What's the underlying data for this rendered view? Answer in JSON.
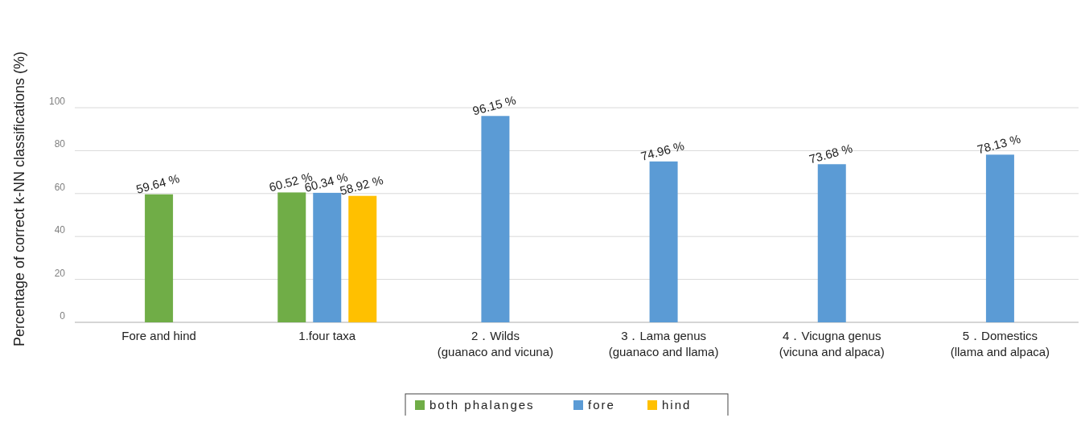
{
  "chart_data": {
    "type": "bar",
    "ylabel": "Percentage of correct k-NN classifications  (%)",
    "categories": [
      "Fore and hind",
      "1.four taxa",
      "2．Wilds\n(guanaco and vicuna)",
      "3．Lama genus\n(guanaco and llama)",
      "4．Vicugna genus\n(vicuna and alpaca)",
      "5．Domestics\n(llama and alpaca)"
    ],
    "series": [
      {
        "name": "both phalanges",
        "color": "#70ad47",
        "values": [
          59.64,
          60.52,
          null,
          null,
          null,
          null
        ],
        "value_labels": [
          "59.64 %",
          "60.52 %",
          null,
          null,
          null,
          null
        ]
      },
      {
        "name": "fore",
        "color": "#5b9bd5",
        "values": [
          null,
          60.34,
          96.15,
          74.96,
          73.68,
          78.13
        ],
        "value_labels": [
          null,
          "60.34 %",
          "96.15 %",
          "74.96 %",
          "73.68 %",
          "78.13 %"
        ]
      },
      {
        "name": "hind",
        "color": "#ffc000",
        "values": [
          null,
          58.92,
          null,
          null,
          null,
          null
        ],
        "value_labels": [
          null,
          "58.92 %",
          null,
          null,
          null,
          null
        ]
      }
    ],
    "ylim": [
      0,
      100
    ],
    "yticks": [
      0,
      20,
      40,
      60,
      80,
      100
    ],
    "grid": "y",
    "legend": "bottom"
  }
}
